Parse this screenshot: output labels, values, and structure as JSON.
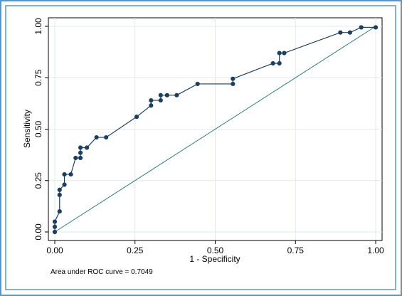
{
  "colors": {
    "outer_frame": "#5a97c9",
    "inner_frame": "#5a97c9",
    "plot_background": "#ffffff",
    "grid": "#e3e8ee",
    "roc_line": "#1d3f5f",
    "roc_marker": "#1d3f5f",
    "reference_line": "#2e7a6e"
  },
  "chart_data": {
    "type": "line",
    "xlabel": "1 - Specificity",
    "ylabel": "Sensitivity",
    "xlim": [
      0,
      1
    ],
    "ylim": [
      0,
      1
    ],
    "x_ticks": [
      0,
      0.25,
      0.5,
      0.75,
      1
    ],
    "y_ticks": [
      0,
      0.25,
      0.5,
      0.75,
      1
    ],
    "x_tick_labels": [
      "0.00",
      "0.25",
      "0.50",
      "0.75",
      "1.00"
    ],
    "y_tick_labels": [
      "0.00",
      "0.25",
      "0.50",
      "0.75",
      "1.00"
    ],
    "grid": true,
    "note": "Area under ROC curve = 0.7049",
    "series": [
      {
        "kind": "roc",
        "marker": "circle",
        "x": [
          0,
          0,
          0,
          0.015,
          0.015,
          0.015,
          0.03,
          0.03,
          0.05,
          0.065,
          0.08,
          0.08,
          0.08,
          0.1,
          0.13,
          0.16,
          0.255,
          0.3,
          0.3,
          0.33,
          0.33,
          0.35,
          0.38,
          0.445,
          0.555,
          0.555,
          0.68,
          0.7,
          0.7,
          0.715,
          0.89,
          0.92,
          0.955,
          1.0
        ],
        "y": [
          0,
          0.025,
          0.05,
          0.1,
          0.18,
          0.205,
          0.23,
          0.28,
          0.28,
          0.36,
          0.36,
          0.385,
          0.41,
          0.41,
          0.46,
          0.46,
          0.56,
          0.615,
          0.64,
          0.64,
          0.665,
          0.665,
          0.665,
          0.72,
          0.72,
          0.745,
          0.82,
          0.82,
          0.87,
          0.87,
          0.97,
          0.97,
          0.995,
          0.995
        ]
      },
      {
        "kind": "reference",
        "marker": "none",
        "x": [
          0,
          1
        ],
        "y": [
          0,
          1
        ]
      }
    ]
  }
}
